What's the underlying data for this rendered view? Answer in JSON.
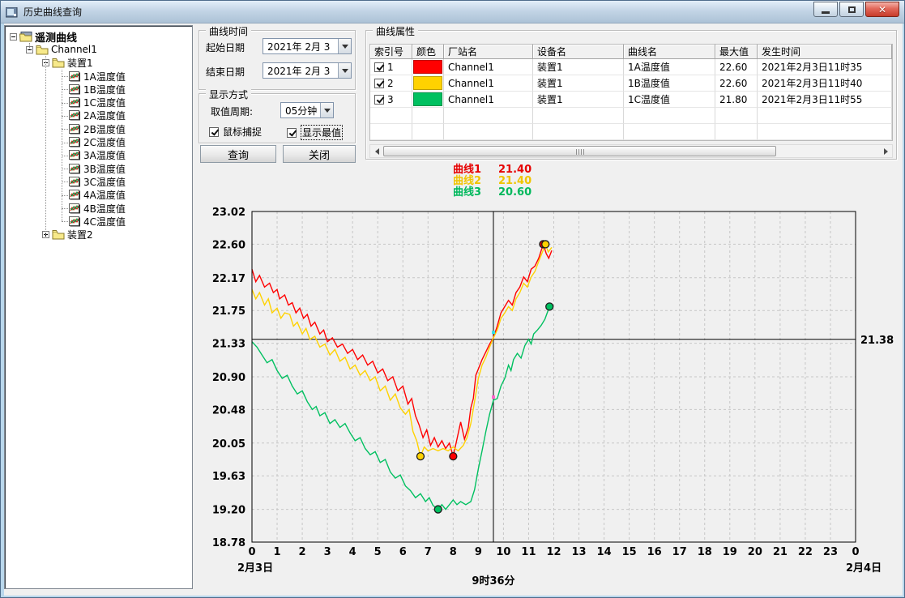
{
  "window": {
    "title": "历史曲线查询",
    "buttons": {
      "minimize": "minimize",
      "restore": "restore",
      "close": "close"
    }
  },
  "tree": {
    "items": [
      {
        "label": "遥测曲线",
        "depth": 0,
        "icon": "root",
        "toggle": "minus",
        "bold": true
      },
      {
        "label": "Channel1",
        "depth": 1,
        "icon": "folder",
        "toggle": "minus",
        "bold": false
      },
      {
        "label": "装置1",
        "depth": 2,
        "icon": "folder",
        "toggle": "minus",
        "bold": false
      },
      {
        "label": "1A温度值",
        "depth": 3,
        "icon": "curve",
        "toggle": "none",
        "bold": false
      },
      {
        "label": "1B温度值",
        "depth": 3,
        "icon": "curve",
        "toggle": "none",
        "bold": false
      },
      {
        "label": "1C温度值",
        "depth": 3,
        "icon": "curve",
        "toggle": "none",
        "bold": false
      },
      {
        "label": "2A温度值",
        "depth": 3,
        "icon": "curve",
        "toggle": "none",
        "bold": false
      },
      {
        "label": "2B温度值",
        "depth": 3,
        "icon": "curve",
        "toggle": "none",
        "bold": false
      },
      {
        "label": "2C温度值",
        "depth": 3,
        "icon": "curve",
        "toggle": "none",
        "bold": false
      },
      {
        "label": "3A温度值",
        "depth": 3,
        "icon": "curve",
        "toggle": "none",
        "bold": false
      },
      {
        "label": "3B温度值",
        "depth": 3,
        "icon": "curve",
        "toggle": "none",
        "bold": false
      },
      {
        "label": "3C温度值",
        "depth": 3,
        "icon": "curve",
        "toggle": "none",
        "bold": false
      },
      {
        "label": "4A温度值",
        "depth": 3,
        "icon": "curve",
        "toggle": "none",
        "bold": false
      },
      {
        "label": "4B温度值",
        "depth": 3,
        "icon": "curve",
        "toggle": "none",
        "bold": false
      },
      {
        "label": "4C温度值",
        "depth": 3,
        "icon": "curve",
        "toggle": "none",
        "bold": false
      },
      {
        "label": "装置2",
        "depth": 2,
        "icon": "folder",
        "toggle": "plus",
        "bold": false
      }
    ]
  },
  "time_group": {
    "title": "曲线时间",
    "start_label": "起始日期",
    "start_value": "2021年 2月 3",
    "end_label": "结束日期",
    "end_value": "2021年 2月 3"
  },
  "display_group": {
    "title": "显示方式",
    "period_label": "取值周期:",
    "period_value": "05分钟",
    "mouse_capture_label": "鼠标捕捉",
    "mouse_capture_checked": true,
    "show_extremes_label": "显示最值",
    "show_extremes_checked": true
  },
  "buttons": {
    "query": "查询",
    "close": "关闭"
  },
  "table": {
    "title": "曲线属性",
    "columns": [
      "索引号",
      "颜色",
      "厂站名",
      "设备名",
      "曲线名",
      "最大值",
      "发生时间"
    ],
    "rows": [
      {
        "checked": true,
        "index": "1",
        "color": "#ff0000",
        "station": "Channel1",
        "device": "装置1",
        "curve": "1A温度值",
        "max": "22.60",
        "time": "2021年2月3日11时35"
      },
      {
        "checked": true,
        "index": "2",
        "color": "#ffd200",
        "station": "Channel1",
        "device": "装置1",
        "curve": "1B温度值",
        "max": "22.60",
        "time": "2021年2月3日11时40"
      },
      {
        "checked": true,
        "index": "3",
        "color": "#00c060",
        "station": "Channel1",
        "device": "装置1",
        "curve": "1C温度值",
        "max": "21.80",
        "time": "2021年2月3日11时55"
      }
    ],
    "empty_rows": 2
  },
  "legend": {
    "items": [
      {
        "label": "曲线1",
        "value": "21.40",
        "color": "#e60000"
      },
      {
        "label": "曲线2",
        "value": "21.40",
        "color": "#f0c400"
      },
      {
        "label": "曲线3",
        "value": "20.60",
        "color": "#00b85c"
      }
    ]
  },
  "chart_data": {
    "type": "line",
    "title": "",
    "xlabel": "",
    "ylabel": "",
    "grid": true,
    "x_axis": {
      "min": 0,
      "max": 24,
      "tick_labels": [
        "0",
        "1",
        "2",
        "3",
        "4",
        "5",
        "6",
        "7",
        "8",
        "9",
        "10",
        "11",
        "12",
        "13",
        "14",
        "15",
        "16",
        "17",
        "18",
        "19",
        "20",
        "21",
        "22",
        "23",
        "0"
      ],
      "start_date_label": "2月3日",
      "end_date_label": "2月4日"
    },
    "y_axis": {
      "min": 18.78,
      "max": 23.02,
      "ticks": [
        "23.02",
        "22.60",
        "22.17",
        "21.75",
        "21.33",
        "20.90",
        "20.48",
        "20.05",
        "19.63",
        "19.20",
        "18.78"
      ]
    },
    "crosshair": {
      "x_value": 9.6,
      "time_label": "9时36分",
      "y_value": 21.38,
      "value_label": "21.38",
      "marks": [
        {
          "y": 21.47,
          "color": "#35e0e8"
        },
        {
          "y": 20.64,
          "color": "#ff66cc"
        }
      ]
    },
    "series": [
      {
        "name": "曲线1",
        "color": "#ff0000",
        "cursor_value": 21.4,
        "min_point": {
          "x": 8.0,
          "y": 19.88
        },
        "max_point": {
          "x": 11.58,
          "y": 22.6
        },
        "points": [
          [
            0,
            22.28
          ],
          [
            0.15,
            22.12
          ],
          [
            0.3,
            22.2
          ],
          [
            0.5,
            22.05
          ],
          [
            0.7,
            22.1
          ],
          [
            0.85,
            21.98
          ],
          [
            1.0,
            22.02
          ],
          [
            1.1,
            21.9
          ],
          [
            1.3,
            21.95
          ],
          [
            1.45,
            21.82
          ],
          [
            1.6,
            21.85
          ],
          [
            1.75,
            21.72
          ],
          [
            1.9,
            21.78
          ],
          [
            2.05,
            21.65
          ],
          [
            2.2,
            21.7
          ],
          [
            2.35,
            21.55
          ],
          [
            2.5,
            21.6
          ],
          [
            2.7,
            21.45
          ],
          [
            2.85,
            21.5
          ],
          [
            3.0,
            21.35
          ],
          [
            3.2,
            21.4
          ],
          [
            3.4,
            21.28
          ],
          [
            3.6,
            21.32
          ],
          [
            3.8,
            21.2
          ],
          [
            4.0,
            21.25
          ],
          [
            4.2,
            21.12
          ],
          [
            4.4,
            21.18
          ],
          [
            4.6,
            21.05
          ],
          [
            4.8,
            21.1
          ],
          [
            5.0,
            20.95
          ],
          [
            5.2,
            21.0
          ],
          [
            5.4,
            20.85
          ],
          [
            5.6,
            20.9
          ],
          [
            5.8,
            20.72
          ],
          [
            6.0,
            20.78
          ],
          [
            6.2,
            20.55
          ],
          [
            6.35,
            20.62
          ],
          [
            6.5,
            20.4
          ],
          [
            6.65,
            20.28
          ],
          [
            6.8,
            20.12
          ],
          [
            6.95,
            20.22
          ],
          [
            7.1,
            20.02
          ],
          [
            7.25,
            20.12
          ],
          [
            7.4,
            20.0
          ],
          [
            7.55,
            20.08
          ],
          [
            7.7,
            19.98
          ],
          [
            7.85,
            20.05
          ],
          [
            8.0,
            19.88
          ],
          [
            8.15,
            20.1
          ],
          [
            8.3,
            20.32
          ],
          [
            8.45,
            20.1
          ],
          [
            8.6,
            20.25
          ],
          [
            8.7,
            20.5
          ],
          [
            8.8,
            20.62
          ],
          [
            8.9,
            20.92
          ],
          [
            9.0,
            21.0
          ],
          [
            9.15,
            21.12
          ],
          [
            9.3,
            21.22
          ],
          [
            9.45,
            21.32
          ],
          [
            9.6,
            21.4
          ],
          [
            9.75,
            21.55
          ],
          [
            9.9,
            21.72
          ],
          [
            10.05,
            21.8
          ],
          [
            10.2,
            21.88
          ],
          [
            10.35,
            21.82
          ],
          [
            10.5,
            21.98
          ],
          [
            10.65,
            22.05
          ],
          [
            10.8,
            22.18
          ],
          [
            10.95,
            22.12
          ],
          [
            11.1,
            22.28
          ],
          [
            11.25,
            22.32
          ],
          [
            11.4,
            22.42
          ],
          [
            11.58,
            22.6
          ],
          [
            11.7,
            22.48
          ],
          [
            11.8,
            22.42
          ],
          [
            11.92,
            22.52
          ]
        ]
      },
      {
        "name": "曲线2",
        "color": "#ffd200",
        "cursor_value": 21.4,
        "min_point": {
          "x": 6.7,
          "y": 19.88
        },
        "max_point": {
          "x": 11.67,
          "y": 22.6
        },
        "points": [
          [
            0,
            22.02
          ],
          [
            0.15,
            21.9
          ],
          [
            0.3,
            21.98
          ],
          [
            0.5,
            21.82
          ],
          [
            0.65,
            21.9
          ],
          [
            0.8,
            21.72
          ],
          [
            1.0,
            21.78
          ],
          [
            1.15,
            21.65
          ],
          [
            1.3,
            21.72
          ],
          [
            1.5,
            21.7
          ],
          [
            1.65,
            21.55
          ],
          [
            1.8,
            21.6
          ],
          [
            2.0,
            21.45
          ],
          [
            2.15,
            21.52
          ],
          [
            2.3,
            21.38
          ],
          [
            2.5,
            21.42
          ],
          [
            2.7,
            21.28
          ],
          [
            2.9,
            21.32
          ],
          [
            3.1,
            21.18
          ],
          [
            3.3,
            21.25
          ],
          [
            3.5,
            21.1
          ],
          [
            3.7,
            21.15
          ],
          [
            3.9,
            21.0
          ],
          [
            4.1,
            21.05
          ],
          [
            4.3,
            20.92
          ],
          [
            4.5,
            20.98
          ],
          [
            4.7,
            20.85
          ],
          [
            4.9,
            20.9
          ],
          [
            5.1,
            20.72
          ],
          [
            5.3,
            20.78
          ],
          [
            5.5,
            20.6
          ],
          [
            5.7,
            20.68
          ],
          [
            5.9,
            20.5
          ],
          [
            6.1,
            20.42
          ],
          [
            6.25,
            20.48
          ],
          [
            6.4,
            20.2
          ],
          [
            6.55,
            20.08
          ],
          [
            6.7,
            19.88
          ],
          [
            6.85,
            20.0
          ],
          [
            7.0,
            19.95
          ],
          [
            7.2,
            19.98
          ],
          [
            7.4,
            19.95
          ],
          [
            7.6,
            19.98
          ],
          [
            7.8,
            19.95
          ],
          [
            8.0,
            20.0
          ],
          [
            8.2,
            19.95
          ],
          [
            8.4,
            20.02
          ],
          [
            8.55,
            20.12
          ],
          [
            8.7,
            20.3
          ],
          [
            8.85,
            20.58
          ],
          [
            9.0,
            20.88
          ],
          [
            9.15,
            21.05
          ],
          [
            9.3,
            21.15
          ],
          [
            9.45,
            21.28
          ],
          [
            9.6,
            21.4
          ],
          [
            9.75,
            21.5
          ],
          [
            9.9,
            21.65
          ],
          [
            10.05,
            21.72
          ],
          [
            10.2,
            21.8
          ],
          [
            10.35,
            21.75
          ],
          [
            10.5,
            21.9
          ],
          [
            10.65,
            21.98
          ],
          [
            10.8,
            22.1
          ],
          [
            10.95,
            22.05
          ],
          [
            11.1,
            22.18
          ],
          [
            11.25,
            22.25
          ],
          [
            11.4,
            22.38
          ],
          [
            11.55,
            22.5
          ],
          [
            11.67,
            22.6
          ],
          [
            11.78,
            22.5
          ],
          [
            11.92,
            22.56
          ]
        ]
      },
      {
        "name": "曲线3",
        "color": "#00c060",
        "cursor_value": 20.6,
        "min_point": {
          "x": 7.4,
          "y": 19.2
        },
        "max_point": {
          "x": 11.83,
          "y": 21.8
        },
        "points": [
          [
            0,
            21.35
          ],
          [
            0.2,
            21.28
          ],
          [
            0.4,
            21.18
          ],
          [
            0.6,
            21.08
          ],
          [
            0.8,
            21.12
          ],
          [
            1.0,
            20.98
          ],
          [
            1.2,
            20.88
          ],
          [
            1.4,
            20.92
          ],
          [
            1.6,
            20.78
          ],
          [
            1.8,
            20.68
          ],
          [
            2.0,
            20.72
          ],
          [
            2.2,
            20.58
          ],
          [
            2.4,
            20.48
          ],
          [
            2.55,
            20.52
          ],
          [
            2.7,
            20.4
          ],
          [
            2.9,
            20.44
          ],
          [
            3.1,
            20.3
          ],
          [
            3.3,
            20.35
          ],
          [
            3.5,
            20.25
          ],
          [
            3.7,
            20.3
          ],
          [
            3.9,
            20.18
          ],
          [
            4.1,
            20.08
          ],
          [
            4.3,
            20.12
          ],
          [
            4.5,
            19.98
          ],
          [
            4.7,
            19.9
          ],
          [
            4.9,
            19.94
          ],
          [
            5.1,
            19.8
          ],
          [
            5.3,
            19.84
          ],
          [
            5.5,
            19.68
          ],
          [
            5.7,
            19.6
          ],
          [
            5.9,
            19.64
          ],
          [
            6.1,
            19.5
          ],
          [
            6.3,
            19.44
          ],
          [
            6.5,
            19.35
          ],
          [
            6.7,
            19.4
          ],
          [
            6.9,
            19.3
          ],
          [
            7.05,
            19.35
          ],
          [
            7.2,
            19.25
          ],
          [
            7.4,
            19.2
          ],
          [
            7.55,
            19.26
          ],
          [
            7.7,
            19.2
          ],
          [
            7.85,
            19.26
          ],
          [
            8.0,
            19.32
          ],
          [
            8.15,
            19.26
          ],
          [
            8.3,
            19.3
          ],
          [
            8.5,
            19.26
          ],
          [
            8.7,
            19.3
          ],
          [
            8.85,
            19.45
          ],
          [
            9.0,
            19.72
          ],
          [
            9.15,
            19.95
          ],
          [
            9.3,
            20.2
          ],
          [
            9.45,
            20.42
          ],
          [
            9.6,
            20.6
          ],
          [
            9.75,
            20.62
          ],
          [
            9.9,
            20.78
          ],
          [
            10.05,
            20.88
          ],
          [
            10.2,
            21.05
          ],
          [
            10.3,
            20.98
          ],
          [
            10.4,
            21.12
          ],
          [
            10.55,
            21.2
          ],
          [
            10.7,
            21.14
          ],
          [
            10.85,
            21.3
          ],
          [
            11.0,
            21.38
          ],
          [
            11.1,
            21.32
          ],
          [
            11.2,
            21.45
          ],
          [
            11.35,
            21.5
          ],
          [
            11.5,
            21.56
          ],
          [
            11.65,
            21.64
          ],
          [
            11.83,
            21.8
          ]
        ]
      }
    ]
  }
}
